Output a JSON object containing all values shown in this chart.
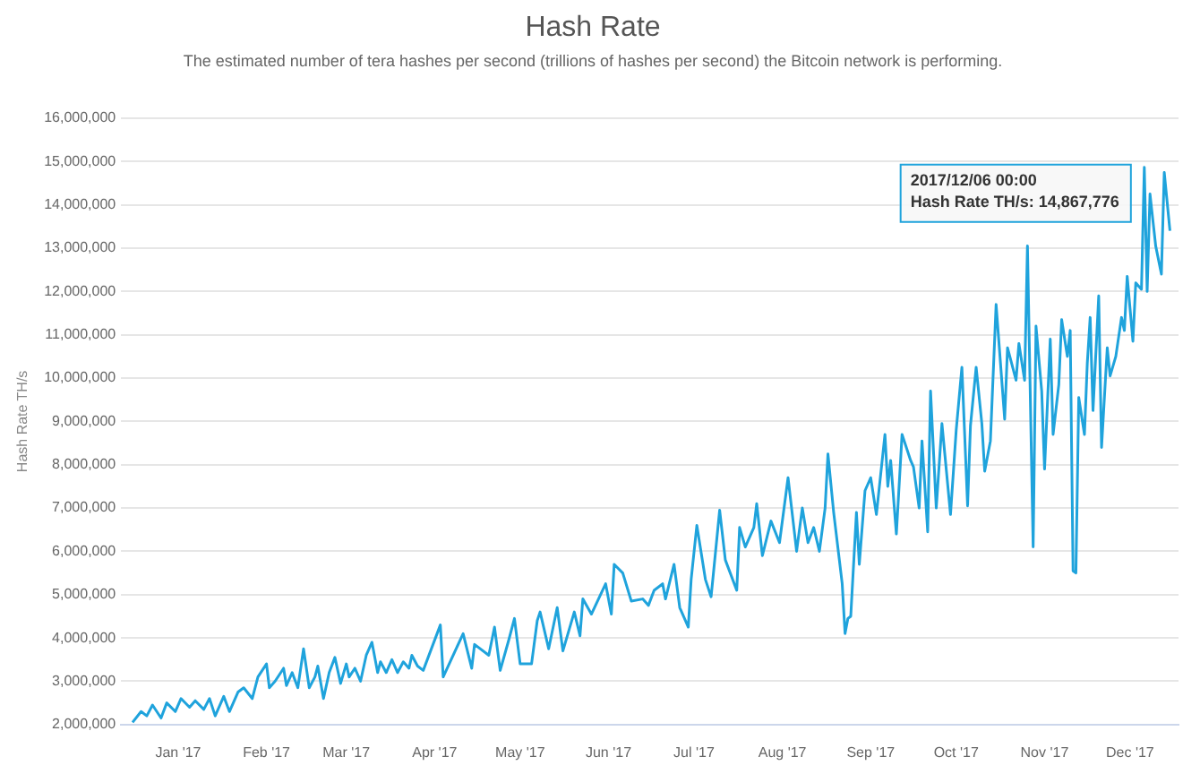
{
  "chart_data": {
    "type": "line",
    "title": "Hash Rate",
    "subtitle": "The estimated number of tera hashes per second (trillions of hashes per second) the Bitcoin network is performing.",
    "ylabel": "Hash Rate TH/s",
    "x": [
      "2016-12-16",
      "2016-12-19",
      "2016-12-21",
      "2016-12-23",
      "2016-12-26",
      "2016-12-28",
      "2016-12-31",
      "2017-01-02",
      "2017-01-05",
      "2017-01-07",
      "2017-01-10",
      "2017-01-12",
      "2017-01-14",
      "2017-01-17",
      "2017-01-19",
      "2017-01-22",
      "2017-01-24",
      "2017-01-27",
      "2017-01-29",
      "2017-02-01",
      "2017-02-02",
      "2017-02-04",
      "2017-02-07",
      "2017-02-08",
      "2017-02-10",
      "2017-02-12",
      "2017-02-14",
      "2017-02-16",
      "2017-02-18",
      "2017-02-19",
      "2017-02-21",
      "2017-02-23",
      "2017-02-25",
      "2017-02-27",
      "2017-03-01",
      "2017-03-02",
      "2017-03-04",
      "2017-03-06",
      "2017-03-08",
      "2017-03-10",
      "2017-03-12",
      "2017-03-13",
      "2017-03-15",
      "2017-03-17",
      "2017-03-19",
      "2017-03-21",
      "2017-03-23",
      "2017-03-24",
      "2017-03-26",
      "2017-03-28",
      "2017-04-03",
      "2017-04-04",
      "2017-04-11",
      "2017-04-14",
      "2017-04-15",
      "2017-04-20",
      "2017-04-22",
      "2017-04-24",
      "2017-04-27",
      "2017-04-29",
      "2017-05-01",
      "2017-05-05",
      "2017-05-07",
      "2017-05-08",
      "2017-05-11",
      "2017-05-14",
      "2017-05-16",
      "2017-05-20",
      "2017-05-22",
      "2017-05-23",
      "2017-05-26",
      "2017-05-31",
      "2017-06-02",
      "2017-06-03",
      "2017-06-06",
      "2017-06-09",
      "2017-06-13",
      "2017-06-15",
      "2017-06-17",
      "2017-06-20",
      "2017-06-21",
      "2017-06-24",
      "2017-06-26",
      "2017-06-29",
      "2017-06-30",
      "2017-07-02",
      "2017-07-05",
      "2017-07-07",
      "2017-07-10",
      "2017-07-12",
      "2017-07-16",
      "2017-07-17",
      "2017-07-19",
      "2017-07-22",
      "2017-07-23",
      "2017-07-25",
      "2017-07-28",
      "2017-07-31",
      "2017-08-03",
      "2017-08-06",
      "2017-08-08",
      "2017-08-10",
      "2017-08-12",
      "2017-08-14",
      "2017-08-16",
      "2017-08-17",
      "2017-08-19",
      "2017-08-22",
      "2017-08-23",
      "2017-08-24",
      "2017-08-25",
      "2017-08-27",
      "2017-08-28",
      "2017-08-30",
      "2017-09-01",
      "2017-09-03",
      "2017-09-06",
      "2017-09-07",
      "2017-09-08",
      "2017-09-10",
      "2017-09-12",
      "2017-09-15",
      "2017-09-16",
      "2017-09-18",
      "2017-09-19",
      "2017-09-21",
      "2017-09-22",
      "2017-09-24",
      "2017-09-26",
      "2017-09-29",
      "2017-10-01",
      "2017-10-03",
      "2017-10-05",
      "2017-10-06",
      "2017-10-08",
      "2017-10-10",
      "2017-10-11",
      "2017-10-13",
      "2017-10-15",
      "2017-10-18",
      "2017-10-19",
      "2017-10-22",
      "2017-10-23",
      "2017-10-25",
      "2017-10-26",
      "2017-10-28",
      "2017-10-29",
      "2017-10-31",
      "2017-11-01",
      "2017-11-03",
      "2017-11-04",
      "2017-11-06",
      "2017-11-07",
      "2017-11-09",
      "2017-11-10",
      "2017-11-11",
      "2017-11-12",
      "2017-11-13",
      "2017-11-15",
      "2017-11-16",
      "2017-11-17",
      "2017-11-18",
      "2017-11-20",
      "2017-11-21",
      "2017-11-23",
      "2017-11-24",
      "2017-11-26",
      "2017-11-28",
      "2017-11-29",
      "2017-11-30",
      "2017-12-02",
      "2017-12-03",
      "2017-12-05",
      "2017-12-06",
      "2017-12-07",
      "2017-12-08",
      "2017-12-10",
      "2017-12-12",
      "2017-12-13",
      "2017-12-15"
    ],
    "series": [
      {
        "color": "#1fa3dc",
        "values": [
          2050000,
          2300000,
          2200000,
          2450000,
          2150000,
          2500000,
          2300000,
          2600000,
          2400000,
          2550000,
          2350000,
          2600000,
          2200000,
          2650000,
          2300000,
          2750000,
          2850000,
          2600000,
          3100000,
          3400000,
          2850000,
          3000000,
          3300000,
          2900000,
          3200000,
          2850000,
          3750000,
          2850000,
          3100000,
          3350000,
          2600000,
          3200000,
          3550000,
          2950000,
          3400000,
          3100000,
          3300000,
          3000000,
          3600000,
          3900000,
          3200000,
          3450000,
          3200000,
          3500000,
          3200000,
          3450000,
          3300000,
          3600000,
          3350000,
          3250000,
          4300000,
          3100000,
          4100000,
          3300000,
          3850000,
          3600000,
          4250000,
          3250000,
          3950000,
          4450000,
          3400000,
          3400000,
          4400000,
          4600000,
          3750000,
          4700000,
          3700000,
          4600000,
          4050000,
          4900000,
          4550000,
          5250000,
          4550000,
          5700000,
          5500000,
          4850000,
          4900000,
          4750000,
          5100000,
          5250000,
          4900000,
          5700000,
          4700000,
          4250000,
          5350000,
          6600000,
          5350000,
          4950000,
          6950000,
          5800000,
          5100000,
          6550000,
          6100000,
          6550000,
          7100000,
          5900000,
          6700000,
          6200000,
          7700000,
          6000000,
          7000000,
          6200000,
          6550000,
          6000000,
          7000000,
          8250000,
          6900000,
          5250000,
          4100000,
          4450000,
          4500000,
          6900000,
          5700000,
          7400000,
          7700000,
          6850000,
          8700000,
          7500000,
          8100000,
          6400000,
          8700000,
          8100000,
          7950000,
          7000000,
          8550000,
          6450000,
          9700000,
          7000000,
          8950000,
          6850000,
          8800000,
          10250000,
          7050000,
          8900000,
          10250000,
          8950000,
          7850000,
          8550000,
          11700000,
          9050000,
          10700000,
          9950000,
          10800000,
          9950000,
          13050000,
          6100000,
          11200000,
          9700000,
          7900000,
          10900000,
          8700000,
          9850000,
          11350000,
          10500000,
          11100000,
          5550000,
          5500000,
          9550000,
          8700000,
          10350000,
          11400000,
          9250000,
          11900000,
          8400000,
          10700000,
          10050000,
          10500000,
          11400000,
          11100000,
          12350000,
          10850000,
          12200000,
          12050000,
          14867776,
          12000000,
          14250000,
          13050000,
          12400000,
          14750000,
          13400000
        ]
      }
    ],
    "xlim": [
      "2016-12-12",
      "2017-12-18"
    ],
    "xticks": [
      {
        "value": "2017-01-01",
        "label": "Jan '17"
      },
      {
        "value": "2017-02-01",
        "label": "Feb '17"
      },
      {
        "value": "2017-03-01",
        "label": "Mar '17"
      },
      {
        "value": "2017-04-01",
        "label": "Apr '17"
      },
      {
        "value": "2017-05-01",
        "label": "May '17"
      },
      {
        "value": "2017-06-01",
        "label": "Jun '17"
      },
      {
        "value": "2017-07-01",
        "label": "Jul '17"
      },
      {
        "value": "2017-08-01",
        "label": "Aug '17"
      },
      {
        "value": "2017-09-01",
        "label": "Sep '17"
      },
      {
        "value": "2017-10-01",
        "label": "Oct '17"
      },
      {
        "value": "2017-11-01",
        "label": "Nov '17"
      },
      {
        "value": "2017-12-01",
        "label": "Dec '17"
      }
    ],
    "ylim": [
      2000000,
      16000000
    ],
    "yticks": [
      {
        "value": 2000000,
        "label": "2,000,000"
      },
      {
        "value": 3000000,
        "label": "3,000,000"
      },
      {
        "value": 4000000,
        "label": "4,000,000"
      },
      {
        "value": 5000000,
        "label": "5,000,000"
      },
      {
        "value": 6000000,
        "label": "6,000,000"
      },
      {
        "value": 7000000,
        "label": "7,000,000"
      },
      {
        "value": 8000000,
        "label": "8,000,000"
      },
      {
        "value": 9000000,
        "label": "9,000,000"
      },
      {
        "value": 10000000,
        "label": "10,000,000"
      },
      {
        "value": 11000000,
        "label": "11,000,000"
      },
      {
        "value": 12000000,
        "label": "12,000,000"
      },
      {
        "value": 13000000,
        "label": "13,000,000"
      },
      {
        "value": 14000000,
        "label": "14,000,000"
      },
      {
        "value": 15000000,
        "label": "15,000,000"
      },
      {
        "value": 16000000,
        "label": "16,000,000"
      }
    ],
    "annotations": [
      {
        "text": "2017/12/06 00:00\nHash Rate TH/s: 14,867,776",
        "x": "2017-12-06",
        "y": 14867776
      }
    ],
    "grid": "y",
    "legend": false,
    "marker": "none",
    "line_style": "solid"
  }
}
